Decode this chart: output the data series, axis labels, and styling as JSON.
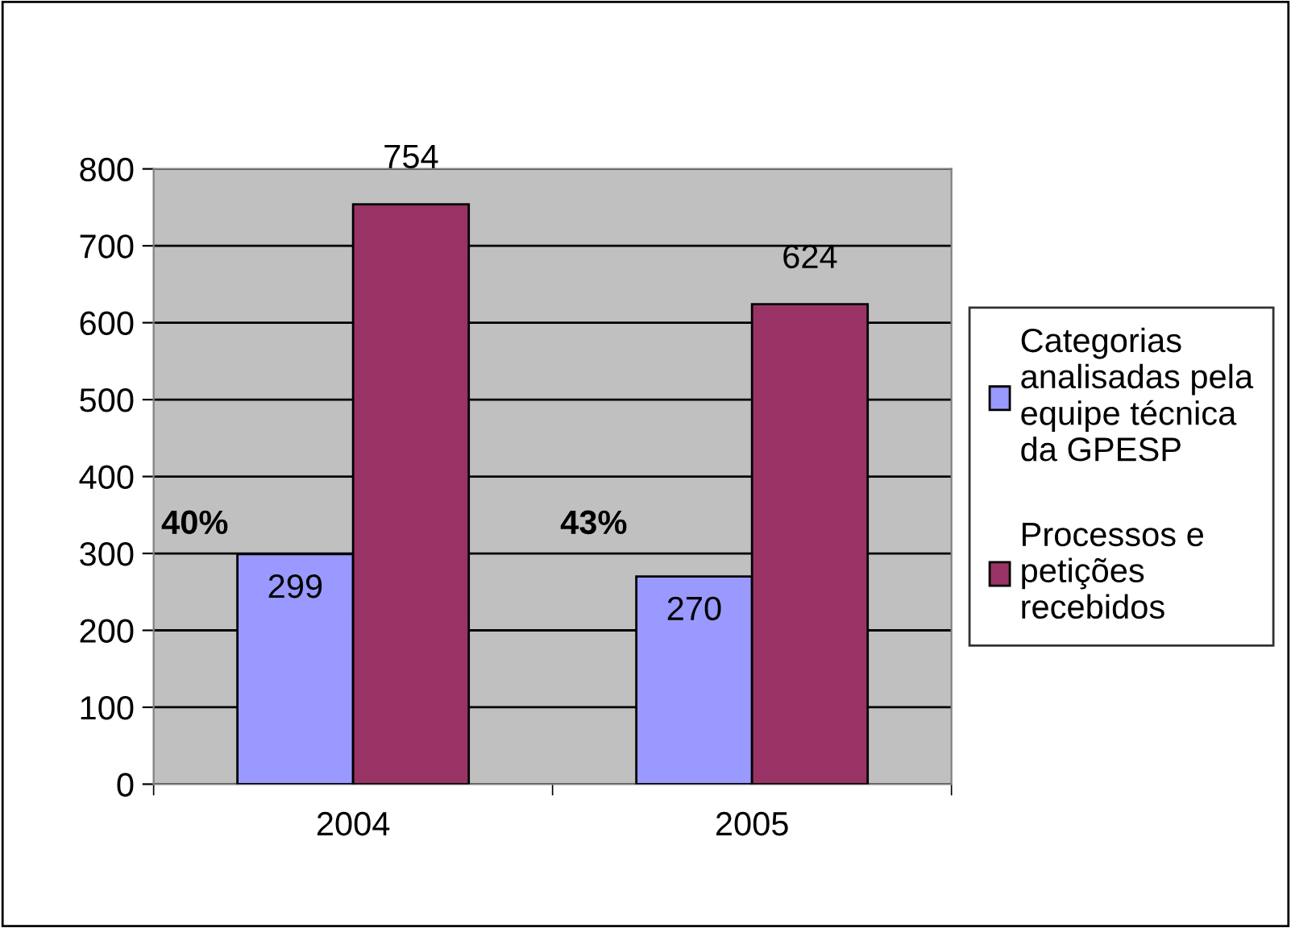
{
  "chart_data": {
    "type": "bar",
    "categories": [
      "2004",
      "2005"
    ],
    "series": [
      {
        "name": "Categorias analisadas pela equipe técnica da GPESP",
        "color": "#9999ff",
        "values": [
          299,
          270
        ]
      },
      {
        "name": "Processos e petições recebidos",
        "color": "#993366",
        "values": [
          754,
          624
        ]
      }
    ],
    "ylim": [
      0,
      800
    ],
    "yticks": [
      0,
      100,
      200,
      300,
      400,
      500,
      600,
      700,
      800
    ],
    "grid": "y",
    "legend": "right",
    "data_labels": true,
    "annotations": [
      "40%",
      "43%"
    ]
  }
}
